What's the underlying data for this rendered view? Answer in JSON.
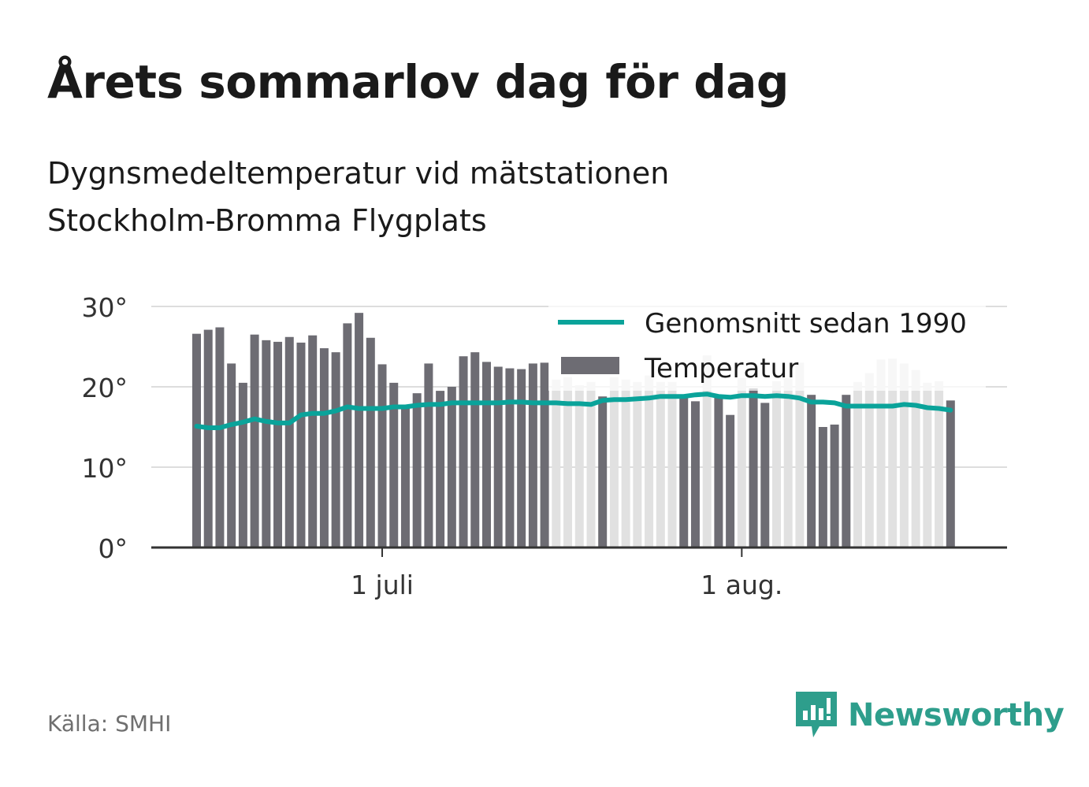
{
  "header": {
    "title": "Årets sommarlov dag för dag",
    "subtitle_line1": "Dygnsmedeltemperatur vid mätstationen",
    "subtitle_line2": "Stockholm-Bromma Flygplats"
  },
  "footer": {
    "source": "Källa: SMHI",
    "brand": "Newsworthy"
  },
  "colors": {
    "bar": "#6d6c73",
    "bar_future": "#e1e1e1",
    "line": "#0aa39a",
    "grid": "#dddddd",
    "axis": "#333333",
    "brand": "#2e9e8c"
  },
  "chart_data": {
    "type": "bar",
    "ylim": [
      0,
      30
    ],
    "y_ticks": [
      {
        "value": 0,
        "label": "0°"
      },
      {
        "value": 10,
        "label": "10°"
      },
      {
        "value": 20,
        "label": "20°"
      },
      {
        "value": 30,
        "label": "30°"
      }
    ],
    "x_ticks": [
      {
        "day_index": 16,
        "label": "1 juli"
      },
      {
        "day_index": 47,
        "label": "1 aug."
      }
    ],
    "legend": {
      "placement": "top-right",
      "line_label": "Genomsnitt sedan 1990",
      "bar_label": "Temperatur"
    },
    "start_date": "2023-06-15",
    "temperature": [
      26.6,
      27.1,
      27.4,
      22.9,
      20.5,
      26.5,
      25.8,
      25.6,
      26.2,
      25.5,
      26.4,
      24.8,
      24.3,
      27.9,
      29.2,
      26.1,
      22.8,
      20.5,
      17.5,
      19.2,
      22.9,
      19.5,
      20.0,
      23.8,
      24.3,
      23.1,
      22.5,
      22.3,
      22.2,
      22.9,
      23.0,
      20.9,
      21.2,
      20.2,
      20.6,
      18.8,
      21.2,
      20.9,
      20.6,
      21.4,
      20.6,
      20.6,
      19.0,
      18.2,
      23.9,
      18.7,
      16.5,
      21.1,
      19.8,
      18.0,
      20.7,
      21.1,
      23.0,
      19.0,
      15.0,
      15.3,
      19.0,
      20.6,
      21.7,
      23.4,
      23.5,
      22.9,
      22.1,
      20.5,
      20.7,
      18.3
    ],
    "temperature_sample_only": [
      false,
      false,
      false,
      false,
      false,
      false,
      false,
      false,
      false,
      false,
      false,
      false,
      false,
      false,
      false,
      false,
      false,
      false,
      false,
      false,
      false,
      false,
      false,
      false,
      false,
      false,
      false,
      false,
      false,
      false,
      false,
      true,
      true,
      true,
      true,
      false,
      true,
      true,
      true,
      true,
      true,
      true,
      false,
      false,
      true,
      false,
      false,
      true,
      false,
      false,
      true,
      true,
      true,
      false,
      false,
      false,
      false,
      true,
      true,
      true,
      true,
      true,
      true,
      true,
      true,
      false
    ],
    "average_since_1990": [
      15.1,
      14.9,
      14.9,
      15.3,
      15.6,
      16.0,
      15.7,
      15.5,
      15.5,
      16.5,
      16.7,
      16.7,
      17.0,
      17.5,
      17.3,
      17.3,
      17.3,
      17.5,
      17.5,
      17.7,
      17.8,
      17.8,
      18.0,
      18.0,
      18.0,
      18.0,
      18.0,
      18.1,
      18.1,
      18.0,
      18.0,
      18.0,
      17.9,
      17.9,
      17.8,
      18.3,
      18.4,
      18.4,
      18.5,
      18.6,
      18.8,
      18.8,
      18.8,
      19.0,
      19.1,
      18.8,
      18.7,
      18.9,
      18.9,
      18.8,
      18.9,
      18.8,
      18.6,
      18.1,
      18.1,
      18.0,
      17.6,
      17.6,
      17.6,
      17.6,
      17.6,
      17.8,
      17.7,
      17.4,
      17.3,
      17.1
    ]
  }
}
